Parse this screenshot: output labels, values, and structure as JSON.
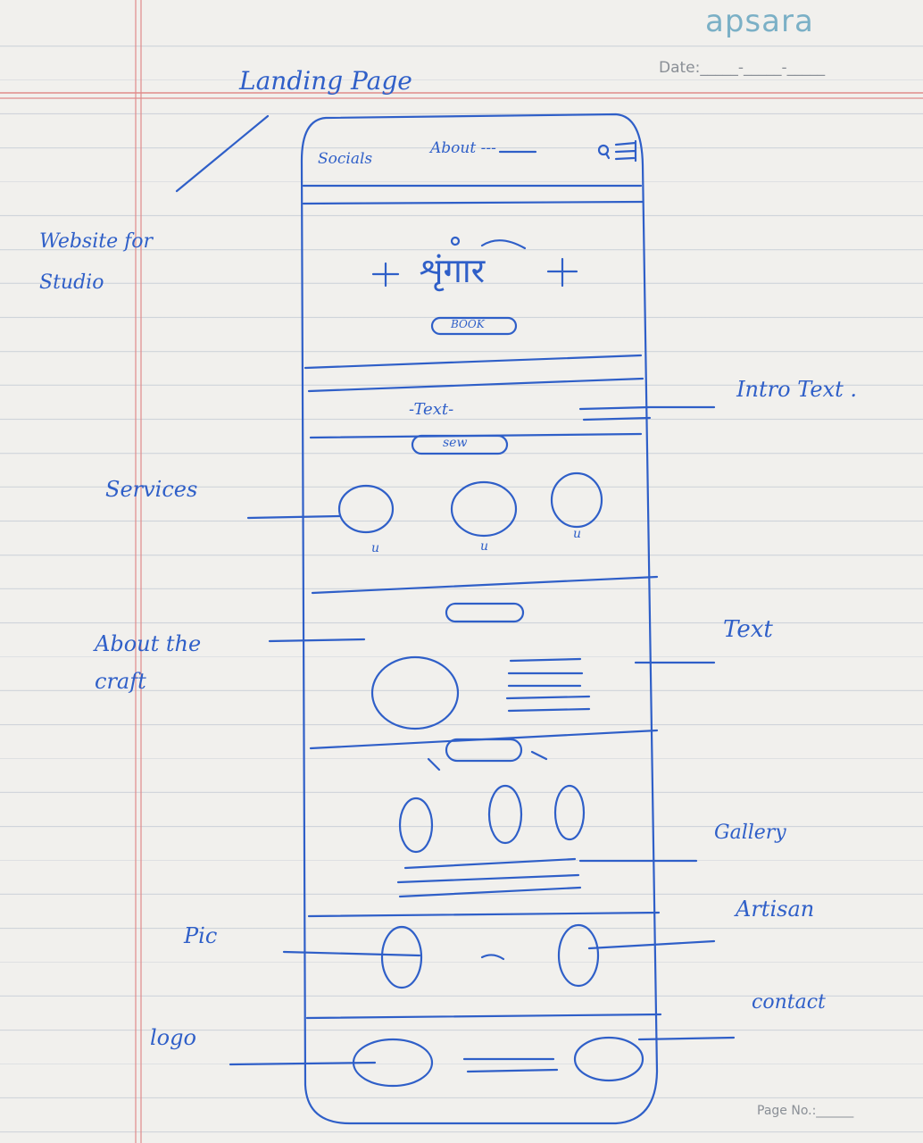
{
  "brand": "apsara",
  "date_label": "Date:_____-_____-_____",
  "page_no_label": "Page No.:______",
  "sketch": {
    "title": "Landing Page",
    "project_label": "Website for Studio",
    "nav": {
      "socials": "Socials",
      "about": "About ---"
    },
    "hero": {
      "logo_text": "शृंगार",
      "book_button": "BOOK"
    },
    "intro": {
      "text": "-Text-",
      "button": "sew"
    },
    "services_caption": "u",
    "annotations": {
      "intro_text": "Intro Text .",
      "services": "Services",
      "about_craft": "About the craft",
      "text": "Text",
      "gallery": "Gallery",
      "artisan": "Artisan",
      "pic": "Pic",
      "contact": "contact",
      "logo": "logo"
    }
  },
  "colors": {
    "ink": "#2f5fc8",
    "margin_line": "#e08a8a",
    "paper": "#f1f0ed",
    "brand": "#7bb0c6"
  }
}
